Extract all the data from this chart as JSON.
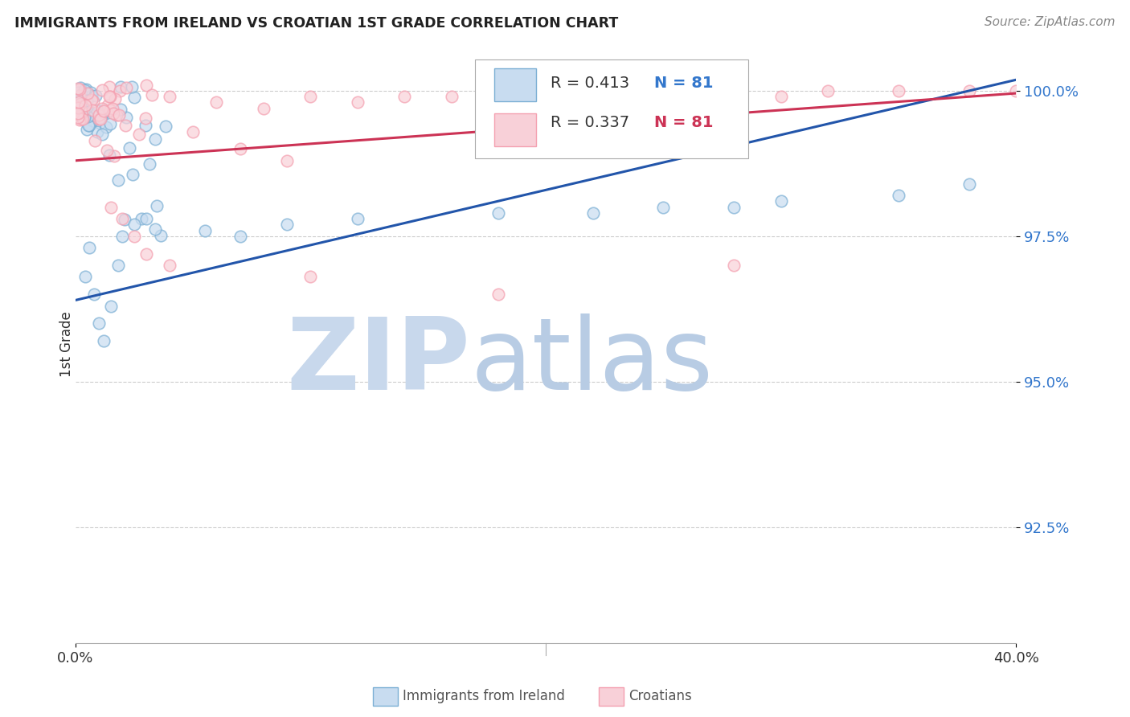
{
  "title": "IMMIGRANTS FROM IRELAND VS CROATIAN 1ST GRADE CORRELATION CHART",
  "source": "Source: ZipAtlas.com",
  "ylabel": "1st Grade",
  "ytick_labels": [
    "100.0%",
    "97.5%",
    "95.0%",
    "92.5%"
  ],
  "ytick_values": [
    1.0,
    0.975,
    0.95,
    0.925
  ],
  "xlim": [
    0.0,
    0.4
  ],
  "ylim": [
    0.905,
    1.008
  ],
  "xtick_positions": [
    0.0,
    0.4
  ],
  "xtick_labels": [
    "0.0%",
    "40.0%"
  ],
  "legend_r1": "R = 0.413",
  "legend_n1": "N = 81",
  "legend_r2": "R = 0.337",
  "legend_n2": "N = 81",
  "legend_label1": "Immigrants from Ireland",
  "legend_label2": "Croatians",
  "blue_color": "#7bafd4",
  "pink_color": "#f4a0b0",
  "blue_fill": "#c8dcf0",
  "pink_fill": "#f8d0d8",
  "blue_line_color": "#2255aa",
  "pink_line_color": "#cc3355",
  "watermark_zip_color": "#c8d8ec",
  "watermark_atlas_color": "#b8cce4"
}
